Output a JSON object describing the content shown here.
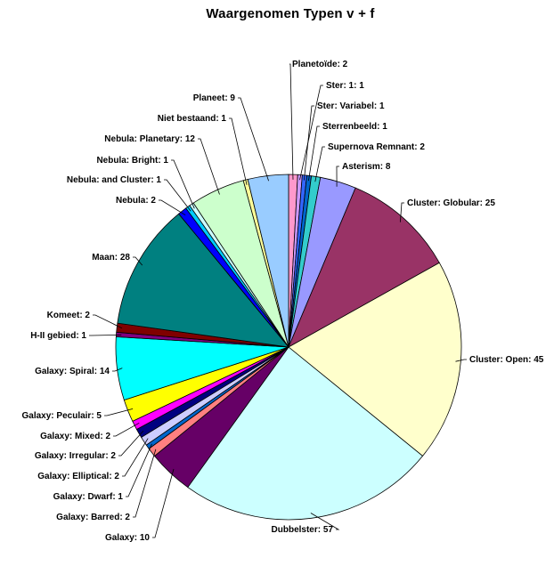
{
  "chart_data": {
    "type": "pie",
    "title": "Waargenomen Typen v + f",
    "slices": [
      {
        "label": "Planetoïde: 2",
        "value": 2,
        "color": "#ff99cc"
      },
      {
        "label": "Ster: 1: 1",
        "value": 1,
        "color": "#cc99ff"
      },
      {
        "label": "Ster: Variabel: 1",
        "value": 1,
        "color": "#3366ff"
      },
      {
        "label": "Sterrenbeeld: 1",
        "value": 1,
        "color": "#0066cc"
      },
      {
        "label": "Supernova Remnant: 2",
        "value": 2,
        "color": "#33cccc"
      },
      {
        "label": "Asterism: 8",
        "value": 8,
        "color": "#9999ff"
      },
      {
        "label": "Cluster: Globular: 25",
        "value": 25,
        "color": "#993366"
      },
      {
        "label": "Cluster: Open: 45",
        "value": 45,
        "color": "#ffffcc"
      },
      {
        "label": "Dubbelster: 57",
        "value": 57,
        "color": "#ccffff"
      },
      {
        "label": "Galaxy: 10",
        "value": 10,
        "color": "#660066"
      },
      {
        "label": "Galaxy: Barred: 2",
        "value": 2,
        "color": "#ff8080"
      },
      {
        "label": "Galaxy: Dwarf: 1",
        "value": 1,
        "color": "#0066cc"
      },
      {
        "label": "Galaxy: Elliptical: 2",
        "value": 2,
        "color": "#ccccff"
      },
      {
        "label": "Galaxy: Irregular: 2",
        "value": 2,
        "color": "#000080"
      },
      {
        "label": "Galaxy: Mixed: 2",
        "value": 2,
        "color": "#ff00ff"
      },
      {
        "label": "Galaxy: Peculair: 5",
        "value": 5,
        "color": "#ffff00"
      },
      {
        "label": "Galaxy: Spiral: 14",
        "value": 14,
        "color": "#00ffff"
      },
      {
        "label": "H-II gebied: 1",
        "value": 1,
        "color": "#800080"
      },
      {
        "label": "Komeet: 2",
        "value": 2,
        "color": "#800000"
      },
      {
        "label": "Maan: 28",
        "value": 28,
        "color": "#008080"
      },
      {
        "label": "Nebula: 2",
        "value": 2,
        "color": "#0000ff"
      },
      {
        "label": "Nebula: and Cluster: 1",
        "value": 1,
        "color": "#00ccff"
      },
      {
        "label": "Nebula: Bright: 1",
        "value": 1,
        "color": "#ccffff"
      },
      {
        "label": "Nebula: Planetary: 12",
        "value": 12,
        "color": "#ccffcc"
      },
      {
        "label": "Niet bestaand: 1",
        "value": 1,
        "color": "#ffff99"
      },
      {
        "label": "Planeet: 9",
        "value": 9,
        "color": "#99ccff"
      }
    ]
  }
}
